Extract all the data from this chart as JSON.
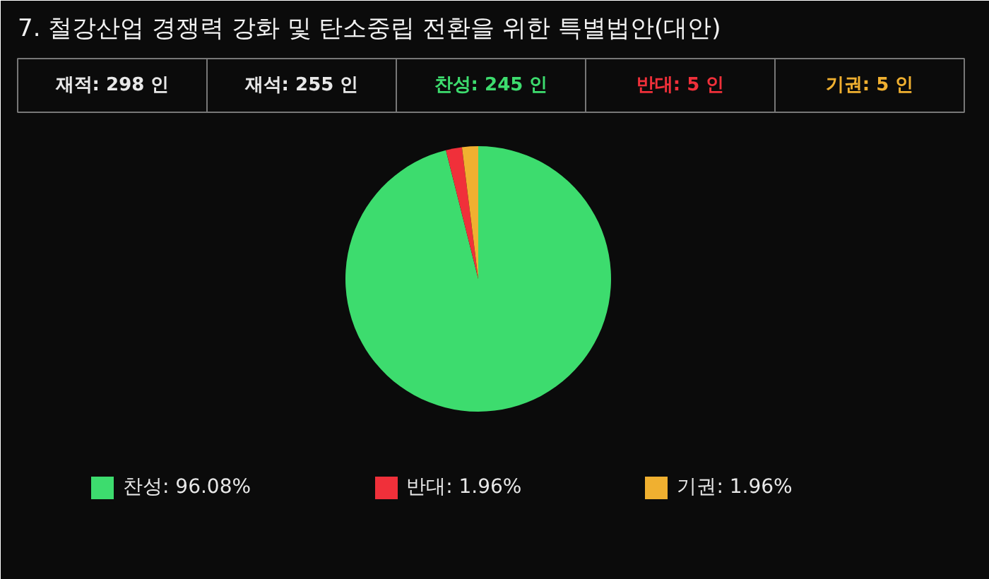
{
  "chart_data": {
    "type": "pie",
    "title": "7. 철강산업 경쟁력 강화 및 탄소중립 전환을 위한 특별법안(대안)",
    "categories": [
      "찬성: 96.08%",
      "반대: 1.96%",
      "기권: 1.96%"
    ],
    "values": [
      96.08,
      1.96,
      1.96
    ],
    "colors": [
      "#3ddc6e",
      "#f0303a",
      "#f0b030"
    ],
    "annotations": [
      "재적: 298 인",
      "재석: 255 인",
      "찬성: 245 인",
      "반대: 5 인",
      "기권: 5 인"
    ],
    "legend": "bottom"
  }
}
